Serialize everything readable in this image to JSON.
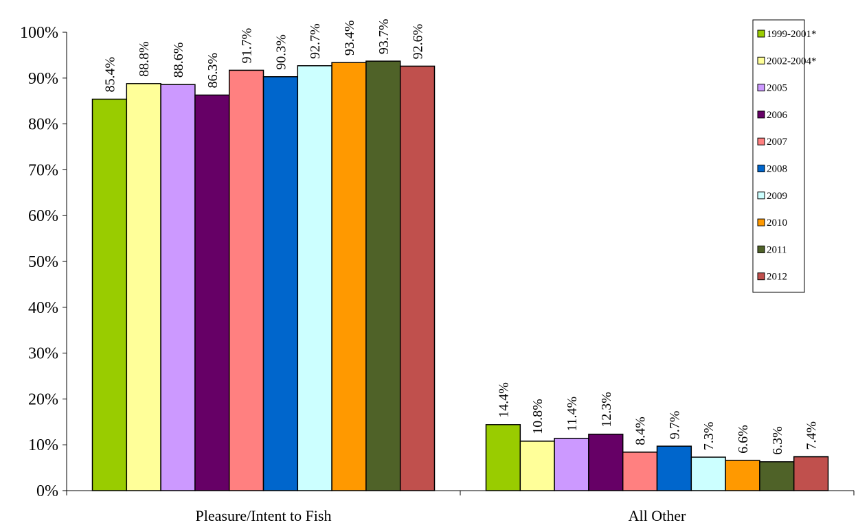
{
  "chart_data": {
    "type": "bar",
    "categories": [
      "Pleasure/Intent to Fish",
      "All Other"
    ],
    "series": [
      {
        "name": "1999-2001*",
        "values": [
          85.4,
          14.4
        ],
        "labels": [
          "85.4%",
          "14.4%"
        ],
        "color": "#99CC00"
      },
      {
        "name": "2002-2004*",
        "values": [
          88.8,
          10.8
        ],
        "labels": [
          "88.8%",
          "10.8%"
        ],
        "color": "#FFFF99"
      },
      {
        "name": "2005",
        "values": [
          88.6,
          11.4
        ],
        "labels": [
          "88.6%",
          "11.4%"
        ],
        "color": "#CC99FF"
      },
      {
        "name": "2006",
        "values": [
          86.3,
          12.3
        ],
        "labels": [
          "86.3%",
          "12.3%"
        ],
        "color": "#660066"
      },
      {
        "name": "2007",
        "values": [
          91.7,
          8.4
        ],
        "labels": [
          "91.7%",
          "8.4%"
        ],
        "color": "#FF8080"
      },
      {
        "name": "2008",
        "values": [
          90.3,
          9.7
        ],
        "labels": [
          "90.3%",
          "9.7%"
        ],
        "color": "#0066CC"
      },
      {
        "name": "2009",
        "values": [
          92.7,
          7.3
        ],
        "labels": [
          "92.7%",
          "7.3%"
        ],
        "color": "#CCFFFF"
      },
      {
        "name": "2010",
        "values": [
          93.4,
          6.6
        ],
        "labels": [
          "93.4%",
          "6.6%"
        ],
        "color": "#FF9900"
      },
      {
        "name": "2011",
        "values": [
          93.7,
          6.3
        ],
        "labels": [
          "93.7%",
          "6.3%"
        ],
        "color": "#4F6228"
      },
      {
        "name": "2012",
        "values": [
          92.6,
          7.4
        ],
        "labels": [
          "92.6%",
          "7.4%"
        ],
        "color": "#C0504D"
      }
    ],
    "yticks": [
      "0%",
      "10%",
      "20%",
      "30%",
      "40%",
      "50%",
      "60%",
      "70%",
      "80%",
      "90%",
      "100%"
    ],
    "ylim": [
      0,
      100
    ],
    "grid": false,
    "legend_position": "top-right",
    "data_labels": "above bars, rotated vertical"
  }
}
